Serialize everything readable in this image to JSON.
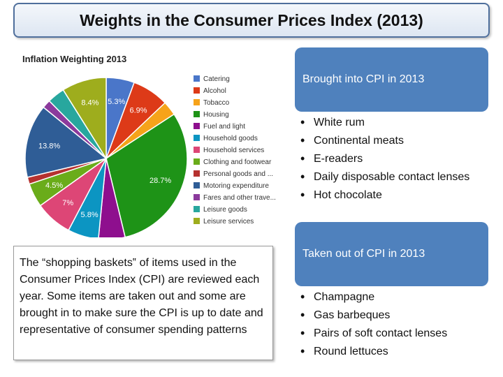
{
  "slide": {
    "title": "Weights in the Consumer Prices Index (2013)",
    "description": "The “shopping baskets‟ of items used in the Consumer Prices Index (CPI) are reviewed each year. Some items are taken out and some are brought in to make sure the CPI is up to date and representative of consumer spending patterns"
  },
  "brought_in": {
    "heading": "Brought into CPI in 2013",
    "items": [
      "White rum",
      "Continental meats",
      "E-readers",
      "Daily disposable contact lenses",
      "Hot chocolate"
    ]
  },
  "taken_out": {
    "heading": "Taken out of CPI in 2013",
    "items": [
      "Champagne",
      "Gas barbeques",
      "Pairs of soft contact lenses",
      "Round lettuces"
    ]
  },
  "chart_data": {
    "type": "pie",
    "title": "Inflation Weighting 2013",
    "legend_position": "right",
    "categories": [
      "Catering",
      "Alcohol",
      "Tobacco",
      "Housing",
      "Fuel and light",
      "Household goods",
      "Household services",
      "Clothing and footwear",
      "Personal goods and ...",
      "Motoring expenditure",
      "Fares and other trave...",
      "Leisure goods",
      "Leisure services"
    ],
    "values": [
      5.3,
      6.9,
      2.7,
      28.7,
      5.0,
      5.8,
      7.0,
      4.5,
      1.3,
      13.8,
      1.6,
      3.3,
      8.4
    ],
    "data_labels": [
      "5.3%",
      "6.9%",
      "",
      "28.7%",
      "",
      "5.8%",
      "7%",
      "4.5%",
      "",
      "13.8%",
      "",
      "",
      "8.4%"
    ],
    "colors": [
      "#4a76c9",
      "#dd3a18",
      "#f6a31a",
      "#1e9317",
      "#8e0f8e",
      "#0c95c2",
      "#dd4676",
      "#6aac1a",
      "#b5312f",
      "#2f5d96",
      "#8b3a9c",
      "#28a79e",
      "#9ead1d"
    ]
  }
}
